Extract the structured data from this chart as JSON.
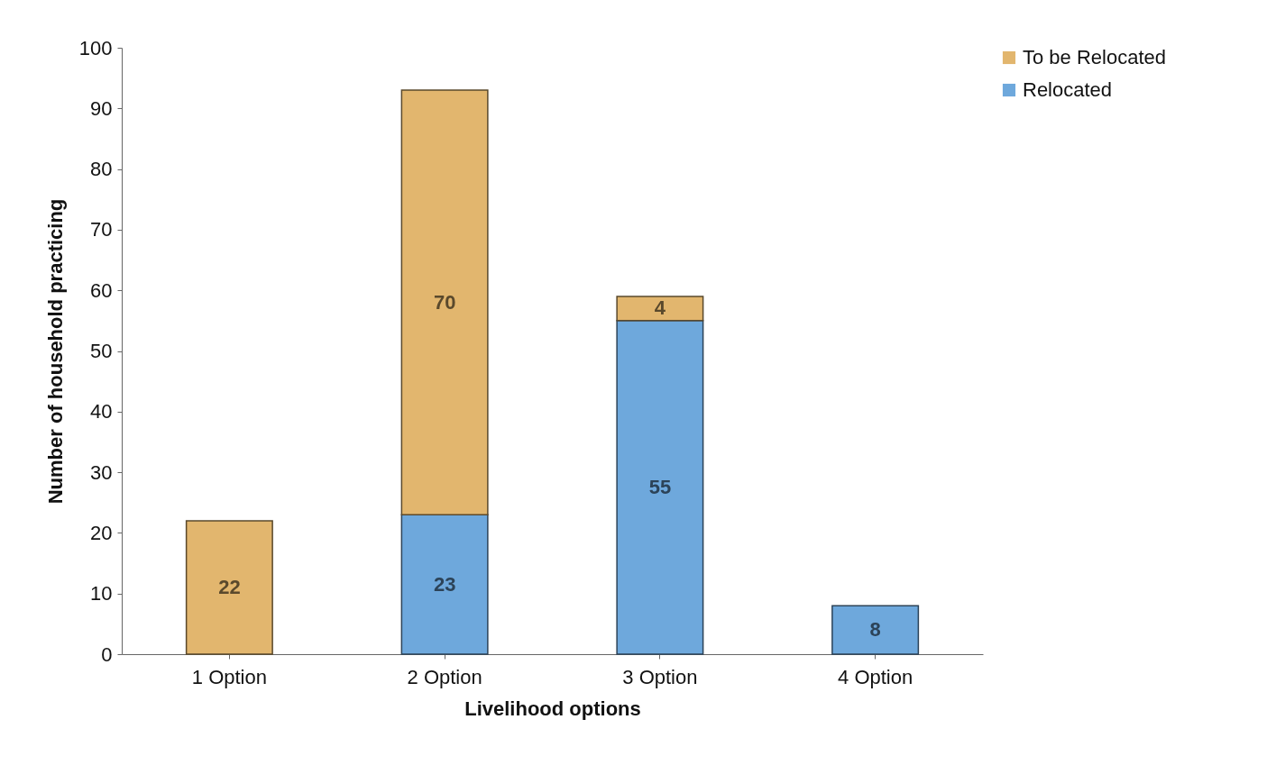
{
  "chart_data": {
    "type": "bar",
    "stacked": true,
    "xlabel": "Livelihood options",
    "ylabel": "Number of household practicing",
    "categories": [
      "1 Option",
      "2 Option",
      "3 Option",
      "4 Option"
    ],
    "series": [
      {
        "name": "Relocated",
        "color": "#6ea8dc",
        "values": [
          null,
          23,
          55,
          8
        ]
      },
      {
        "name": "To be Relocated",
        "color": "#e2b66e",
        "values": [
          22,
          70,
          4,
          null
        ]
      }
    ],
    "ylim": [
      0,
      100
    ],
    "yticks": [
      0,
      10,
      20,
      30,
      40,
      50,
      60,
      70,
      80,
      90,
      100
    ],
    "grid": false,
    "legend": "right",
    "data_labels": true
  }
}
